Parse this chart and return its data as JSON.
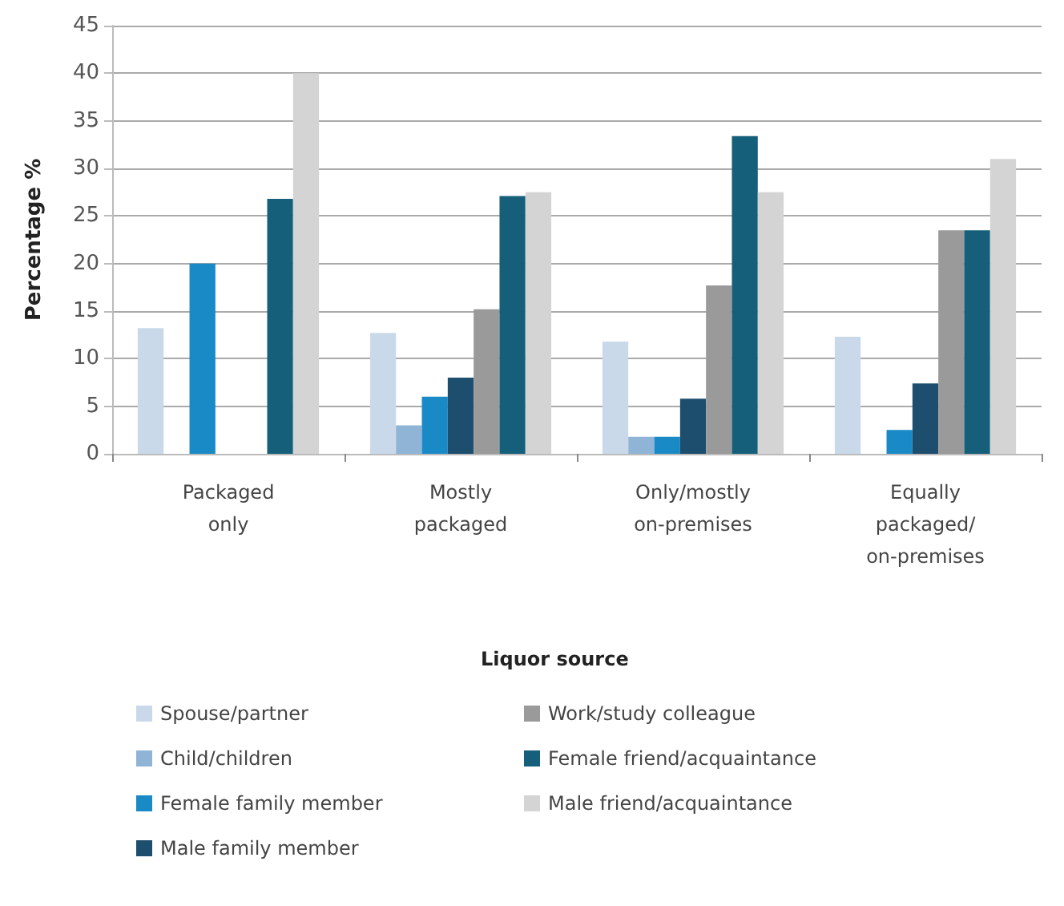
{
  "chart_data": {
    "type": "bar",
    "ylabel": "Percentage %",
    "legend_title": "Liquor source",
    "categories": [
      "Packaged\nonly",
      "Mostly\npackaged",
      "Only/mostly\non-premises",
      "Equally\npackaged/\non-premises"
    ],
    "series": [
      {
        "name": "Spouse/partner",
        "color": "#c9d9ea",
        "values": [
          13.2,
          12.7,
          11.8,
          12.3
        ]
      },
      {
        "name": "Child/children",
        "color": "#8fb4d6",
        "values": [
          0,
          3,
          1.8,
          0
        ]
      },
      {
        "name": "Female family member",
        "color": "#1a8ac6",
        "values": [
          20,
          6,
          1.8,
          2.5
        ]
      },
      {
        "name": "Male family member",
        "color": "#1d4e6e",
        "values": [
          0,
          8,
          5.8,
          7.4
        ]
      },
      {
        "name": "Work/study colleague",
        "color": "#9a9a9a",
        "values": [
          0,
          15.2,
          17.7,
          23.5
        ]
      },
      {
        "name": "Female friend/acquaintance",
        "color": "#155f7a",
        "values": [
          26.8,
          27.1,
          33.4,
          23.5
        ]
      },
      {
        "name": "Male friend/acquaintance",
        "color": "#d4d4d4",
        "values": [
          40,
          27.5,
          27.5,
          31
        ]
      }
    ],
    "ylim": [
      0,
      45
    ],
    "yticks": [
      0,
      5,
      10,
      15,
      20,
      25,
      30,
      35,
      40,
      45
    ],
    "grid": "y",
    "legend": "bottom"
  }
}
